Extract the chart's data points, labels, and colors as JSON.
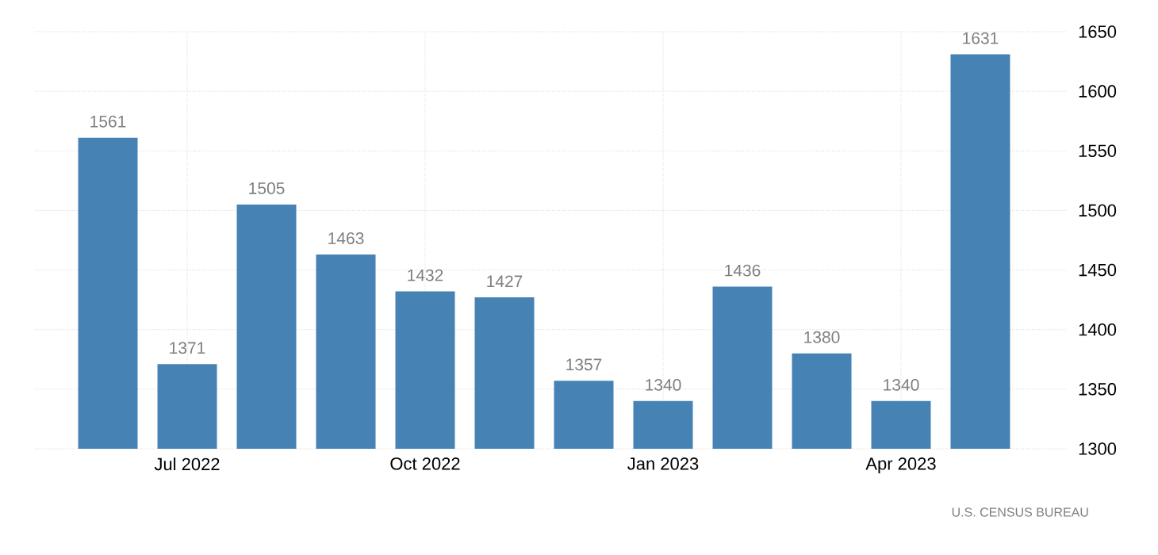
{
  "chart_data": {
    "type": "bar",
    "categories": [
      null,
      "Jul 2022",
      null,
      null,
      "Oct 2022",
      null,
      null,
      "Jan 2023",
      null,
      null,
      "Apr 2023",
      null
    ],
    "values": [
      1561,
      1371,
      1505,
      1463,
      1432,
      1427,
      1357,
      1340,
      1436,
      1380,
      1340,
      1631
    ],
    "color": "#4682b4",
    "ylim": [
      1300,
      1650
    ],
    "yticks": [
      1300,
      1350,
      1400,
      1450,
      1500,
      1550,
      1600,
      1650
    ],
    "grid": true,
    "data_labels": true,
    "annotations": [
      "U.S. CENSUS BUREAU"
    ]
  }
}
